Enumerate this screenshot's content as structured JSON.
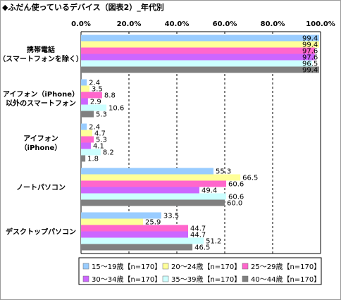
{
  "title": "◆ふだん使っているデバイス（図表2）_年代別",
  "chart_data": {
    "type": "bar",
    "orientation": "horizontal",
    "title": "◆ふだん使っているデバイス（図表2）_年代別",
    "xlim": [
      0,
      100
    ],
    "x_ticks": [
      "0.0%",
      "20.0%",
      "40.0%",
      "60.0%",
      "80.0%",
      "100.0%"
    ],
    "grid": "vertical dashed",
    "legend_position": "bottom",
    "categories": [
      [
        "携帯電話",
        "（スマートフォンを除く）"
      ],
      [
        "アイフォン（iPhone）",
        "以外のスマートフォン"
      ],
      [
        "アイフォン",
        "（iPhone）"
      ],
      [
        "ノートパソコン"
      ],
      [
        "デスクトップパソコン"
      ]
    ],
    "series": [
      {
        "name": "15～19歳【n=170】",
        "color": "#99ccff",
        "values": [
          99.4,
          2.4,
          2.4,
          55.3,
          33.5
        ]
      },
      {
        "name": "20～24歳【n=170】",
        "color": "#ffff99",
        "values": [
          99.4,
          3.5,
          4.7,
          66.5,
          25.9
        ]
      },
      {
        "name": "25～29歳【n=170】",
        "color": "#ff66cc",
        "values": [
          97.6,
          8.8,
          5.3,
          60.6,
          44.7
        ]
      },
      {
        "name": "30～34歳【n=170】",
        "color": "#cc66ff",
        "values": [
          97.6,
          2.9,
          4.1,
          49.4,
          44.7
        ]
      },
      {
        "name": "35～39歳【n=170】",
        "color": "#ccffff",
        "values": [
          96.5,
          10.6,
          8.2,
          60.6,
          51.2
        ]
      },
      {
        "name": "40～44歳【n=170】",
        "color": "#808080",
        "values": [
          99.4,
          5.3,
          1.8,
          60.0,
          46.5
        ]
      }
    ]
  }
}
